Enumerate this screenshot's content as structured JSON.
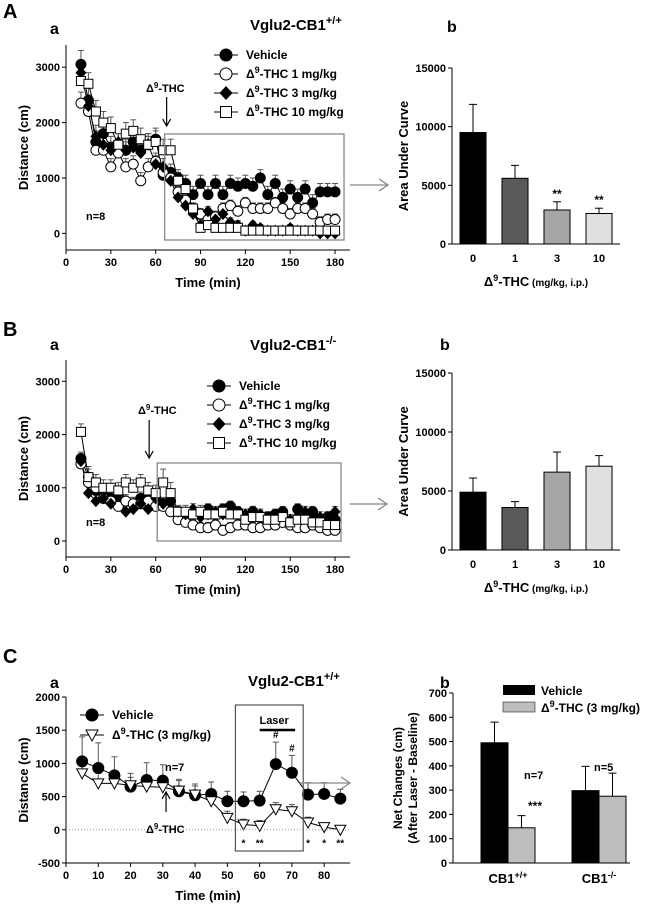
{
  "panel_labels": {
    "A": "A",
    "B": "B",
    "C": "C",
    "a": "a",
    "b": "b"
  },
  "common": {
    "time_label": "Time (min)",
    "distance_label": "Distance (cm)",
    "auc_label": "Area Under Curve",
    "thc_label": "Δ",
    "thc_sup": "9",
    "thc_tail": "-THC",
    "dose_xlabel_tail": " (mg/kg, i.p.)"
  },
  "chart_data": [
    {
      "id": "Aa",
      "type": "line",
      "title": "Vglu2-CB1",
      "title_sup": "+/+",
      "xlabel": "Time (min)",
      "ylabel": "Distance (cm)",
      "xlim": [
        0,
        190
      ],
      "ylim": [
        -300,
        3400
      ],
      "xticks": [
        0,
        30,
        60,
        90,
        120,
        150,
        180
      ],
      "yticks": [
        0,
        1000,
        2000,
        3000
      ],
      "n_label": "n=8",
      "injection_time": 70,
      "legend": [
        "Vehicle",
        "Δ9-THC 1 mg/kg",
        "Δ9-THC 3 mg/kg",
        "Δ9-THC 10 mg/kg"
      ],
      "x": [
        10,
        15,
        20,
        25,
        30,
        35,
        40,
        45,
        50,
        55,
        60,
        65,
        70,
        75,
        80,
        85,
        90,
        95,
        100,
        105,
        110,
        115,
        120,
        125,
        130,
        135,
        140,
        145,
        150,
        155,
        160,
        165,
        170,
        175,
        180
      ],
      "series": [
        {
          "name": "Vehicle",
          "marker": "circle-filled",
          "values": [
            3050,
            2400,
            1650,
            1800,
            1550,
            1600,
            1500,
            1650,
            1500,
            1600,
            1700,
            1050,
            1100,
            1000,
            900,
            700,
            900,
            700,
            900,
            700,
            900,
            850,
            900,
            850,
            1000,
            700,
            900,
            650,
            800,
            650,
            800,
            550,
            750,
            750,
            750
          ],
          "err": [
            250,
            250,
            200,
            200,
            200,
            200,
            200,
            200,
            200,
            200,
            200,
            150,
            150,
            150,
            150,
            150,
            150,
            150,
            150,
            150,
            150,
            150,
            150,
            150,
            150,
            150,
            150,
            150,
            150,
            150,
            150,
            150,
            150,
            150,
            150
          ]
        },
        {
          "name": "Δ9-THC 1 mg/kg",
          "marker": "circle-open",
          "values": [
            2350,
            2200,
            1500,
            1500,
            1200,
            1450,
            1200,
            1250,
            950,
            1200,
            1300,
            1100,
            1000,
            750,
            600,
            450,
            350,
            250,
            300,
            450,
            500,
            400,
            550,
            450,
            450,
            450,
            550,
            450,
            350,
            450,
            450,
            350,
            200,
            250,
            250
          ],
          "err": [
            200,
            200,
            150,
            150,
            150,
            150,
            150,
            150,
            150,
            150,
            150,
            150,
            100,
            100,
            100,
            100,
            100,
            100,
            100,
            100,
            100,
            100,
            100,
            100,
            100,
            100,
            100,
            100,
            100,
            100,
            100,
            100,
            100,
            100,
            100
          ]
        },
        {
          "name": "Δ9-THC 3 mg/kg",
          "marker": "diamond-filled",
          "values": [
            2900,
            2300,
            1750,
            1600,
            1500,
            1650,
            1500,
            1550,
            1450,
            1600,
            1250,
            1200,
            950,
            650,
            500,
            350,
            150,
            400,
            250,
            350,
            200,
            150,
            50,
            150,
            100,
            50,
            50,
            50,
            100,
            50,
            50,
            50,
            0,
            0,
            0
          ],
          "err": [
            200,
            200,
            200,
            150,
            150,
            150,
            150,
            150,
            150,
            150,
            150,
            150,
            100,
            100,
            100,
            100,
            100,
            80,
            80,
            80,
            80,
            80,
            60,
            60,
            60,
            60,
            60,
            60,
            60,
            60,
            60,
            60,
            60,
            60,
            60
          ]
        },
        {
          "name": "Δ9-THC 10 mg/kg",
          "marker": "square-open",
          "values": [
            2750,
            2700,
            2200,
            2000,
            1900,
            1600,
            1800,
            1850,
            1700,
            1600,
            1650,
            1500,
            1500,
            950,
            800,
            450,
            100,
            150,
            100,
            100,
            100,
            100,
            50,
            50,
            50,
            50,
            50,
            50,
            50,
            50,
            50,
            50,
            50,
            50,
            50
          ],
          "err": [
            200,
            200,
            200,
            200,
            200,
            200,
            200,
            200,
            200,
            200,
            200,
            200,
            200,
            150,
            150,
            100,
            60,
            60,
            60,
            60,
            60,
            60,
            60,
            60,
            60,
            60,
            60,
            60,
            60,
            60,
            60,
            60,
            60,
            60,
            60
          ]
        }
      ]
    },
    {
      "id": "Ab",
      "type": "bar",
      "xlabel": "Δ9-THC (mg/kg, i.p.)",
      "ylabel": "Area Under Curve",
      "categories": [
        "0",
        "1",
        "3",
        "10"
      ],
      "values": [
        9500,
        5600,
        2900,
        2600
      ],
      "err": [
        2400,
        1100,
        700,
        450
      ],
      "significance": [
        "",
        "",
        "**",
        "**"
      ],
      "ylim": [
        0,
        15000
      ],
      "yticks": [
        0,
        5000,
        10000,
        15000
      ],
      "colors": [
        "#000000",
        "#5a5a5a",
        "#a6a6a6",
        "#e0e0e0"
      ]
    },
    {
      "id": "Ba",
      "type": "line",
      "title": "Vglu2-CB1",
      "title_sup": "-/-",
      "xlabel": "Time (min)",
      "ylabel": "Distance (cm)",
      "xlim": [
        0,
        190
      ],
      "ylim": [
        -300,
        3400
      ],
      "xticks": [
        0,
        30,
        60,
        90,
        120,
        150,
        180
      ],
      "yticks": [
        0,
        1000,
        2000,
        3000
      ],
      "n_label": "n=8",
      "injection_time": 65,
      "legend": [
        "Vehicle",
        "Δ9-THC 1 mg/kg",
        "Δ9-THC 3 mg/kg",
        "Δ9-THC 10 mg/kg"
      ],
      "x": [
        10,
        15,
        20,
        25,
        30,
        35,
        40,
        45,
        50,
        55,
        60,
        65,
        70,
        75,
        80,
        85,
        90,
        95,
        100,
        105,
        110,
        115,
        120,
        125,
        130,
        135,
        140,
        145,
        150,
        155,
        160,
        165,
        170,
        175,
        180
      ],
      "series": [
        {
          "name": "Vehicle",
          "marker": "circle-filled",
          "values": [
            1550,
            1200,
            950,
            900,
            800,
            850,
            750,
            700,
            800,
            800,
            800,
            700,
            750,
            500,
            450,
            550,
            500,
            600,
            500,
            600,
            650,
            550,
            300,
            550,
            450,
            450,
            500,
            550,
            350,
            600,
            350,
            550,
            350,
            450,
            400
          ],
          "err": [
            120,
            150,
            120,
            120,
            120,
            120,
            120,
            120,
            120,
            120,
            120,
            120,
            120,
            100,
            100,
            100,
            100,
            100,
            100,
            100,
            100,
            100,
            100,
            100,
            100,
            100,
            100,
            100,
            100,
            100,
            100,
            100,
            100,
            100,
            100
          ]
        },
        {
          "name": "Δ9-THC 1 mg/kg",
          "marker": "circle-open",
          "values": [
            1450,
            1100,
            1000,
            800,
            750,
            650,
            750,
            700,
            700,
            750,
            650,
            650,
            550,
            400,
            350,
            300,
            250,
            250,
            300,
            200,
            250,
            300,
            300,
            250,
            250,
            300,
            300,
            350,
            300,
            250,
            250,
            300,
            250,
            200,
            200
          ],
          "err": [
            120,
            150,
            120,
            120,
            120,
            120,
            120,
            120,
            120,
            120,
            120,
            120,
            100,
            100,
            100,
            100,
            100,
            100,
            100,
            100,
            100,
            100,
            100,
            100,
            100,
            100,
            100,
            100,
            100,
            100,
            100,
            100,
            100,
            100,
            100
          ]
        },
        {
          "name": "Δ9-THC 3 mg/kg",
          "marker": "diamond-filled",
          "values": [
            1500,
            900,
            750,
            800,
            700,
            850,
            550,
            600,
            700,
            600,
            800,
            700,
            750,
            550,
            500,
            600,
            450,
            500,
            550,
            500,
            600,
            500,
            500,
            550,
            500,
            450,
            450,
            500,
            400,
            450,
            550,
            500,
            450,
            450,
            550
          ],
          "err": [
            120,
            120,
            120,
            120,
            120,
            120,
            100,
            100,
            100,
            100,
            100,
            100,
            100,
            100,
            100,
            100,
            100,
            100,
            100,
            100,
            100,
            100,
            100,
            100,
            100,
            100,
            100,
            100,
            100,
            100,
            100,
            100,
            100,
            100,
            100
          ]
        },
        {
          "name": "Δ9-THC 10 mg/kg",
          "marker": "square-open",
          "values": [
            2050,
            1200,
            1100,
            1000,
            1000,
            950,
            1100,
            1000,
            1100,
            950,
            900,
            1100,
            900,
            550,
            550,
            500,
            550,
            500,
            500,
            550,
            500,
            500,
            400,
            450,
            450,
            400,
            400,
            450,
            350,
            400,
            400,
            350,
            350,
            300,
            300
          ],
          "err": [
            150,
            200,
            150,
            150,
            150,
            150,
            150,
            150,
            150,
            150,
            150,
            250,
            200,
            120,
            120,
            120,
            120,
            120,
            120,
            120,
            120,
            120,
            120,
            120,
            120,
            120,
            120,
            120,
            120,
            120,
            120,
            120,
            120,
            120,
            120
          ]
        }
      ]
    },
    {
      "id": "Bb",
      "type": "bar",
      "xlabel": "Δ9-THC (mg/kg, i.p.)",
      "ylabel": "Area Under Curve",
      "categories": [
        "0",
        "1",
        "3",
        "10"
      ],
      "values": [
        4900,
        3600,
        6600,
        7100
      ],
      "err": [
        1200,
        500,
        1700,
        900
      ],
      "significance": [
        "",
        "",
        "",
        ""
      ],
      "ylim": [
        0,
        15000
      ],
      "yticks": [
        0,
        5000,
        10000,
        15000
      ],
      "colors": [
        "#000000",
        "#5a5a5a",
        "#a6a6a6",
        "#e0e0e0"
      ]
    },
    {
      "id": "Ca",
      "type": "line",
      "title": "Vglu2-CB1",
      "title_sup": "+/+",
      "xlabel": "Time (min)",
      "ylabel": "Distance (cm)",
      "xlim": [
        0,
        88
      ],
      "ylim": [
        -500,
        2000
      ],
      "xticks": [
        0,
        10,
        20,
        30,
        40,
        50,
        60,
        70,
        80
      ],
      "yticks": [
        -500,
        0,
        500,
        1000,
        1500,
        2000
      ],
      "n_label": "n=7",
      "injection_time": 31,
      "laser_label": "Laser",
      "legend": [
        "Vehicle",
        "Δ9-THC (3 mg/kg)"
      ],
      "x": [
        5,
        10,
        15,
        20,
        25,
        30,
        35,
        40,
        45,
        50,
        55,
        60,
        65,
        70,
        75,
        80,
        85
      ],
      "series": [
        {
          "name": "Vehicle",
          "marker": "circle-filled",
          "values": [
            1030,
            930,
            820,
            650,
            750,
            740,
            580,
            520,
            540,
            430,
            430,
            440,
            990,
            860,
            530,
            540,
            470
          ],
          "err": [
            370,
            380,
            280,
            200,
            260,
            240,
            180,
            170,
            180,
            150,
            140,
            140,
            330,
            260,
            180,
            170,
            140
          ]
        },
        {
          "name": "Δ9-THC (3 mg/kg)",
          "marker": "triangle-open",
          "values": [
            850,
            700,
            700,
            670,
            650,
            640,
            590,
            530,
            430,
            180,
            80,
            60,
            310,
            280,
            110,
            40,
            0
          ],
          "err": [
            120,
            150,
            150,
            120,
            120,
            130,
            150,
            130,
            130,
            100,
            80,
            80,
            100,
            100,
            80,
            60,
            50
          ]
        }
      ],
      "hash_marks": [
        {
          "x": 65,
          "text": "#"
        },
        {
          "x": 70,
          "text": "#"
        }
      ],
      "stars": [
        {
          "x": 55,
          "text": "*"
        },
        {
          "x": 60,
          "text": "**"
        },
        {
          "x": 75,
          "text": "*"
        },
        {
          "x": 80,
          "text": "*"
        },
        {
          "x": 85,
          "text": "**"
        }
      ]
    },
    {
      "id": "Cb",
      "type": "bar",
      "ylabel": "Net Changes (cm)",
      "ylabel2": "(After Laser - Baseline)",
      "ylim": [
        0,
        700
      ],
      "yticks": [
        0,
        100,
        200,
        300,
        400,
        500,
        600,
        700
      ],
      "groups": [
        "CB1+/+",
        "CB1-/-"
      ],
      "group_base": "CB1",
      "group_sups": [
        "+/+",
        "-/-"
      ],
      "series": [
        {
          "name": "Vehicle",
          "color": "#000000",
          "values": [
            495,
            298
          ],
          "err": [
            85,
            100
          ]
        },
        {
          "name": "Δ9-THC (3 mg/kg)",
          "color": "#bdbdbd",
          "values": [
            145,
            275
          ],
          "err": [
            50,
            95
          ]
        }
      ],
      "n_labels": [
        "n=7",
        "n=5"
      ],
      "significance": "***"
    }
  ]
}
